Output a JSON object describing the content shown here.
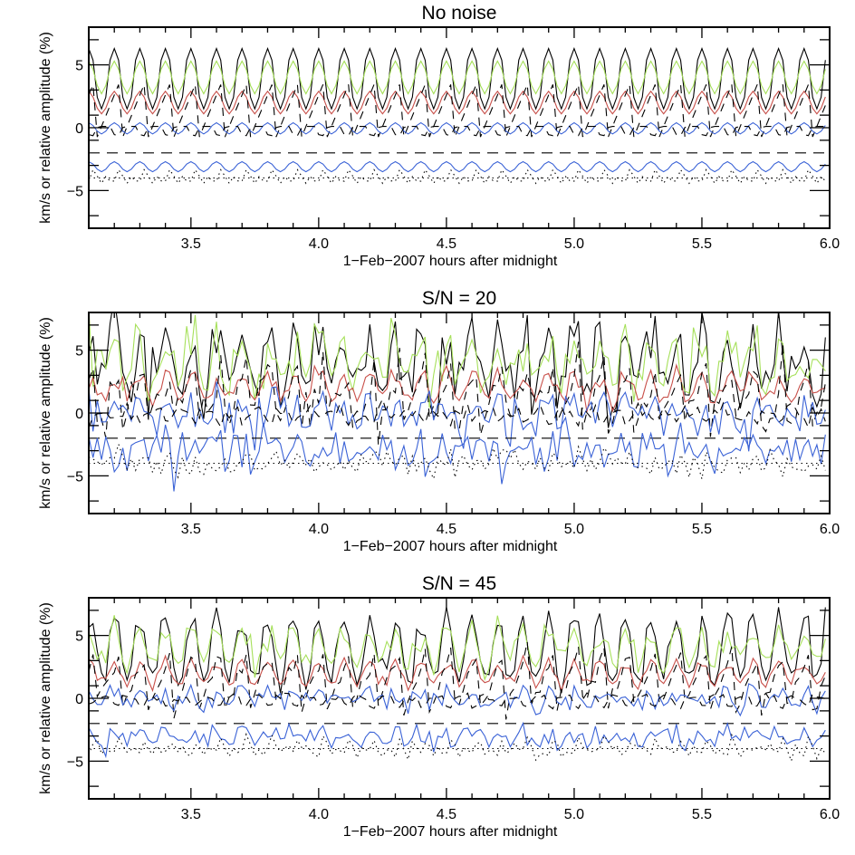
{
  "chart_data": [
    {
      "type": "line",
      "title": "No noise",
      "xlabel": "1−Feb−2007 hours after midnight",
      "ylabel": "km/s or relative amplitude (%)",
      "xlim": [
        3.1,
        6.0
      ],
      "ylim": [
        -8,
        8
      ],
      "xticks": [
        "3.5",
        "4.0",
        "4.5",
        "5.0",
        "5.5",
        "6.0"
      ],
      "yticks": [
        "−5",
        "0",
        "5"
      ],
      "noise_sd": 0
    },
    {
      "type": "line",
      "title": "S/N = 20",
      "xlabel": "1−Feb−2007 hours after midnight",
      "ylabel": "km/s or relative amplitude (%)",
      "xlim": [
        3.1,
        6.0
      ],
      "ylim": [
        -8,
        8
      ],
      "xticks": [
        "3.5",
        "4.0",
        "4.5",
        "5.0",
        "5.5",
        "6.0"
      ],
      "yticks": [
        "−5",
        "0",
        "5"
      ],
      "noise_sd": 1.0
    },
    {
      "type": "line",
      "title": "S/N = 45",
      "xlabel": "1−Feb−2007 hours after midnight",
      "ylabel": "km/s or relative amplitude (%)",
      "xlim": [
        3.1,
        6.0
      ],
      "ylim": [
        -8,
        8
      ],
      "xticks": [
        "3.5",
        "4.0",
        "4.5",
        "5.0",
        "5.5",
        "6.0"
      ],
      "yticks": [
        "−5",
        "0",
        "5"
      ],
      "noise_sd": 0.5
    }
  ],
  "series_model": {
    "period_hours": 0.1,
    "peak_phase_hours": 0.02,
    "sample_step_hours": 0.016667,
    "series": [
      {
        "name": "black-solid",
        "color": "#000000",
        "style": "solid",
        "offset": 3.9,
        "amplitude": 2.4,
        "shape": "peak",
        "phase": 0,
        "noise": 1.3
      },
      {
        "name": "green",
        "color": "#a6e05a",
        "style": "solid",
        "offset": 4.0,
        "amplitude": 1.3,
        "shape": "sine",
        "phase": 0,
        "noise": 1.2
      },
      {
        "name": "red",
        "color": "#c8504a",
        "style": "solid",
        "offset": 2.0,
        "amplitude": 0.9,
        "shape": "sine",
        "phase": 0,
        "noise": 0.5
      },
      {
        "name": "black-dashed",
        "color": "#000000",
        "style": "dashed",
        "offset": 1.6,
        "amplitude": 2.5,
        "shape": "saw",
        "phase": 0.03,
        "noise": 0.8
      },
      {
        "name": "blue-upper",
        "color": "#3a62d6",
        "style": "solid",
        "offset": -0.05,
        "amplitude": 0.45,
        "shape": "sine",
        "phase": 0,
        "noise": 0.9
      },
      {
        "name": "black-dashed-zero",
        "color": "#000000",
        "style": "dashed",
        "offset": -0.1,
        "amplitude": 0.4,
        "shape": "dip",
        "phase": 0.06,
        "noise": 0.3
      },
      {
        "name": "reference-dashed",
        "color": "#000000",
        "style": "longdash",
        "offset": -2.0,
        "amplitude": 0,
        "shape": "flat",
        "phase": 0,
        "noise": 0
      },
      {
        "name": "blue-lower",
        "color": "#3a62d6",
        "style": "solid",
        "offset": -3.1,
        "amplitude": 0.4,
        "shape": "sine",
        "phase": 0,
        "noise": 0.9
      },
      {
        "name": "dotted-reference",
        "color": "#000000",
        "style": "dotted",
        "offset": -4.0,
        "amplitude": 0,
        "shape": "flat",
        "phase": 0,
        "noise": 0
      },
      {
        "name": "dotted-oscillation",
        "color": "#000000",
        "style": "dotted",
        "offset": -4.0,
        "amplitude": 0.7,
        "shape": "double",
        "phase": 0.02,
        "noise": 0.5
      }
    ]
  }
}
